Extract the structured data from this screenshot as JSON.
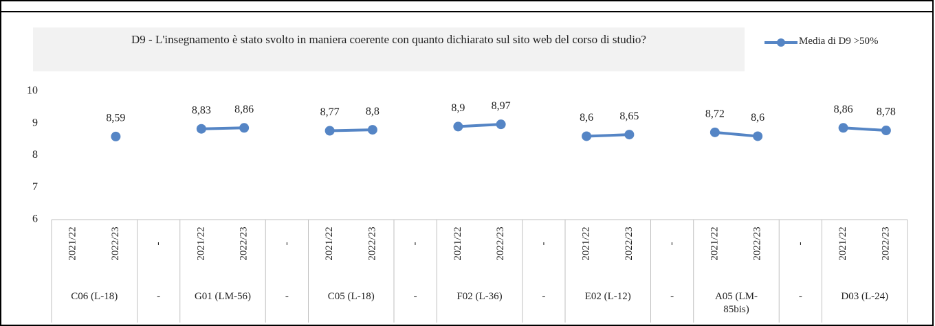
{
  "chart_data": {
    "type": "line",
    "title": "D9 - L'insegnamento è stato svolto in maniera coerente con quanto dichiarato sul sito web del corso di studio?",
    "category_groups": [
      {
        "label": "C06 (L-18)",
        "categories": [
          "2021/22",
          "2022/23"
        ]
      },
      {
        "label": "-",
        "categories": [
          "-"
        ]
      },
      {
        "label": "G01 (LM-56)",
        "categories": [
          "2021/22",
          "2022/23"
        ]
      },
      {
        "label": "-",
        "categories": [
          "-"
        ]
      },
      {
        "label": "C05 (L-18)",
        "categories": [
          "2021/22",
          "2022/23"
        ]
      },
      {
        "label": "-",
        "categories": [
          "-"
        ]
      },
      {
        "label": "F02 (L-36)",
        "categories": [
          "2021/22",
          "2022/23"
        ]
      },
      {
        "label": "-",
        "categories": [
          "-"
        ]
      },
      {
        "label": "E02 (L-12)",
        "categories": [
          "2021/22",
          "2022/23"
        ]
      },
      {
        "label": "-",
        "categories": [
          "-"
        ]
      },
      {
        "label": "A05 (LM-85bis)",
        "categories": [
          "2021/22",
          "2022/23"
        ]
      },
      {
        "label": "-",
        "categories": [
          "-"
        ]
      },
      {
        "label": "D03 (L-24)",
        "categories": [
          "2021/22",
          "2022/23"
        ]
      }
    ],
    "series": [
      {
        "name": "Media di D9 >50%",
        "color": "#5585c5",
        "values": [
          null,
          8.59,
          null,
          8.83,
          8.86,
          null,
          8.77,
          8.8,
          null,
          8.9,
          8.97,
          null,
          8.6,
          8.65,
          null,
          8.72,
          8.6,
          null,
          8.86,
          8.78
        ],
        "value_labels": [
          null,
          "8,59",
          null,
          "8,83",
          "8,86",
          null,
          "8,77",
          "8,8",
          null,
          "8,9",
          "8,97",
          null,
          "8,6",
          "8,65",
          null,
          "8,72",
          "8,6",
          null,
          "8,86",
          "8,78"
        ]
      }
    ],
    "ylim": [
      6,
      10
    ],
    "yticks": [
      6,
      7,
      8,
      9,
      10
    ],
    "legend": "top-right"
  }
}
